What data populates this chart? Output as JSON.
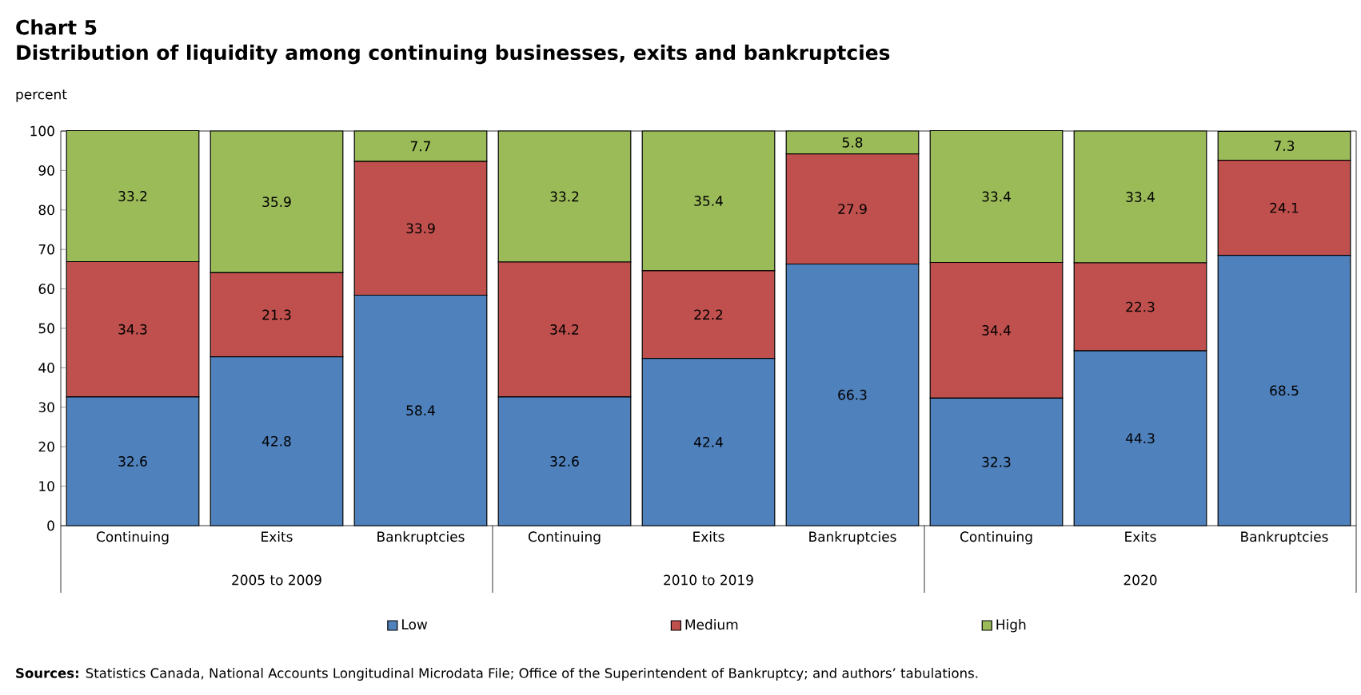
{
  "chart_data": {
    "type": "bar",
    "title": "Chart 5",
    "subtitle": "Distribution of liquidity among continuing businesses, exits and bankruptcies",
    "ylabel": "percent",
    "categories": [
      "Continuing",
      "Exits",
      "Bankruptcies",
      "Continuing",
      "Exits",
      "Bankruptcies",
      "Continuing",
      "Exits",
      "Bankruptcies"
    ],
    "series": [
      {
        "name": "Low",
        "color": "#4f81bd",
        "values": [
          32.6,
          42.8,
          58.4,
          32.6,
          42.4,
          66.3,
          32.3,
          44.3,
          68.5
        ]
      },
      {
        "name": "Medium",
        "color": "#c0504d",
        "values": [
          34.3,
          21.3,
          33.9,
          34.2,
          22.2,
          27.9,
          34.4,
          22.3,
          24.1
        ]
      },
      {
        "name": "High",
        "color": "#9bbb59",
        "values": [
          33.2,
          35.9,
          7.7,
          33.2,
          35.4,
          5.8,
          33.4,
          33.4,
          7.3
        ]
      }
    ],
    "stacked": true,
    "data_labels": true,
    "ylim": [
      0,
      100
    ],
    "yticks": [
      0,
      10,
      20,
      30,
      40,
      50,
      60,
      70,
      80,
      90,
      100
    ],
    "grid": false,
    "legend": "bottom",
    "annotations": [
      "2005 to 2009",
      "2010 to 2019",
      "2020",
      "**Sources:** Statistics Canada, National Accounts Longitudinal Microdata File; Office of the Superintendent of Bankruptcy; and authors’ tabulations."
    ]
  }
}
